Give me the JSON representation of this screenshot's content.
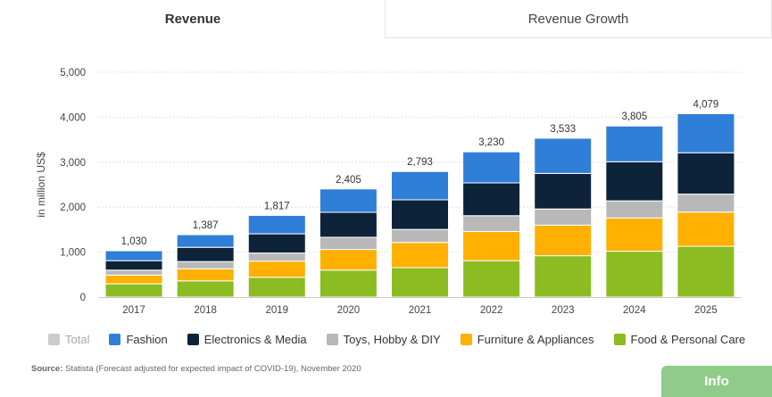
{
  "tabs": {
    "active": "Revenue",
    "inactive": "Revenue Growth"
  },
  "colors": {
    "total": "#cccccc",
    "fashion": "#2f7ed8",
    "electronics": "#0d233a",
    "toys": "#b8b8b8",
    "furniture": "#ffb000",
    "food": "#8bbc21"
  },
  "legend": {
    "total": "Total",
    "fashion": "Fashion",
    "electronics": "Electronics & Media",
    "toys": "Toys, Hobby & DIY",
    "furniture": "Furniture & Appliances",
    "food": "Food & Personal Care"
  },
  "source": {
    "label": "Source:",
    "text": " Statista (Forecast adjusted for expected impact of COVID-19), November 2020"
  },
  "info_label": "Info",
  "chart_data": {
    "type": "bar",
    "stacked": true,
    "categories": [
      "2017",
      "2018",
      "2019",
      "2020",
      "2021",
      "2022",
      "2023",
      "2024",
      "2025"
    ],
    "ylabel": "in million US$",
    "ylim": [
      0,
      5000
    ],
    "yticks": [
      0,
      1000,
      2000,
      3000,
      4000,
      5000
    ],
    "ytick_labels": [
      "0",
      "1,000",
      "2,000",
      "3,000",
      "4,000",
      "5,000"
    ],
    "totals": [
      1030,
      1387,
      1817,
      2405,
      2793,
      3230,
      3533,
      3805,
      4079
    ],
    "total_labels": [
      "1,030",
      "1,387",
      "1,817",
      "2,405",
      "2,793",
      "3,230",
      "3,533",
      "3,805",
      "4,079"
    ],
    "grid": true,
    "legend_position": "bottom",
    "series": [
      {
        "name": "Food & Personal Care",
        "key": "food",
        "values": [
          295,
          360,
          440,
          600,
          655,
          810,
          920,
          1020,
          1130
        ]
      },
      {
        "name": "Furniture & Appliances",
        "key": "furniture",
        "values": [
          195,
          270,
          360,
          460,
          560,
          650,
          680,
          740,
          760
        ]
      },
      {
        "name": "Toys, Hobby & DIY",
        "key": "toys",
        "values": [
          110,
          160,
          180,
          270,
          290,
          350,
          360,
          380,
          400
        ]
      },
      {
        "name": "Electronics & Media",
        "key": "electronics",
        "values": [
          210,
          317,
          427,
          555,
          658,
          730,
          790,
          870,
          920
        ]
      },
      {
        "name": "Fashion",
        "key": "fashion",
        "values": [
          220,
          280,
          410,
          520,
          630,
          690,
          783,
          795,
          869
        ]
      }
    ]
  }
}
